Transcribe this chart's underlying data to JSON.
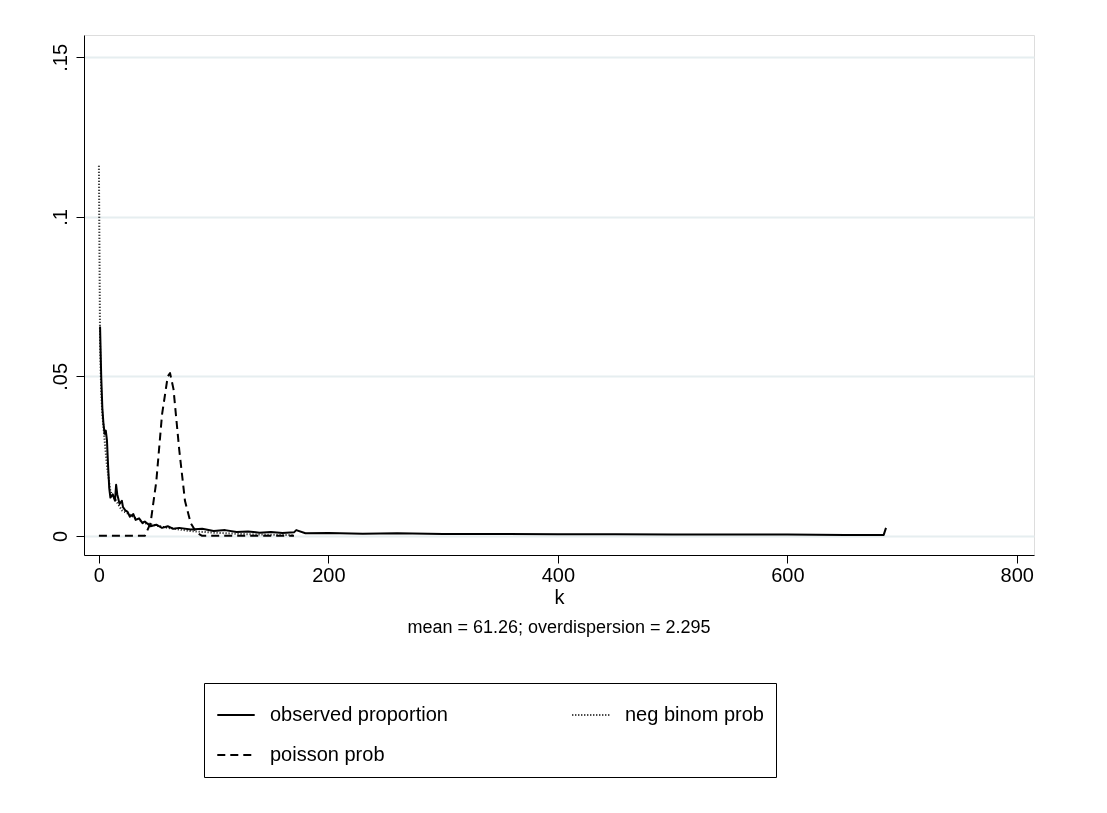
{
  "chart_data": {
    "type": "line",
    "xlabel": "k",
    "annotations": [
      "mean = 61.26; overdispersion = 2.295"
    ],
    "xlim": [
      -13,
      815
    ],
    "ylim": [
      -0.006,
      0.157
    ],
    "xticks": [
      0,
      200,
      400,
      600,
      800
    ],
    "yticks": [
      {
        "value": 0,
        "label": "0"
      },
      {
        "value": 0.05,
        "label": ".05"
      },
      {
        "value": 0.1,
        "label": ".1"
      },
      {
        "value": 0.15,
        "label": ".15"
      }
    ],
    "grid": "y",
    "legend": "bottom",
    "series": [
      {
        "name": "observed proportion",
        "color": "#000000",
        "line_style": "solid",
        "x": [
          1,
          2,
          3,
          4,
          5,
          6,
          7,
          8,
          9,
          10,
          12,
          14,
          15,
          16,
          18,
          20,
          21,
          23,
          25,
          27,
          30,
          32,
          35,
          38,
          40,
          45,
          50,
          55,
          60,
          65,
          70,
          80,
          90,
          100,
          110,
          120,
          130,
          140,
          150,
          160,
          170,
          172,
          180,
          200,
          230,
          260,
          300,
          350,
          400,
          450,
          500,
          550,
          600,
          650,
          680,
          684,
          686
        ],
        "values": [
          0.0656,
          0.05,
          0.04,
          0.035,
          0.032,
          0.033,
          0.03,
          0.022,
          0.015,
          0.012,
          0.013,
          0.011,
          0.016,
          0.013,
          0.01,
          0.011,
          0.009,
          0.008,
          0.0075,
          0.006,
          0.0068,
          0.005,
          0.0055,
          0.004,
          0.0045,
          0.003,
          0.0035,
          0.0025,
          0.003,
          0.0022,
          0.0025,
          0.002,
          0.0022,
          0.0015,
          0.0018,
          0.0012,
          0.0014,
          0.001,
          0.0012,
          0.0009,
          0.0011,
          0.0018,
          0.0008,
          0.0009,
          0.0007,
          0.0008,
          0.0006,
          0.0006,
          0.0005,
          0.0005,
          0.0004,
          0.0004,
          0.0004,
          0.0003,
          0.0003,
          0.0003,
          0.0025
        ]
      },
      {
        "name": "neg binom prob",
        "color": "#000000",
        "line_style": "dotted",
        "x": [
          0,
          1,
          2,
          3,
          5,
          7,
          10,
          15,
          20,
          30,
          40,
          60,
          80,
          100,
          130,
          170
        ],
        "values": [
          0.116,
          0.06,
          0.045,
          0.038,
          0.03,
          0.022,
          0.014,
          0.011,
          0.008,
          0.006,
          0.004,
          0.0025,
          0.0015,
          0.001,
          0.0005,
          0.0002
        ]
      },
      {
        "name": "poisson prob",
        "color": "#000000",
        "line_style": "dashed",
        "x": [
          0,
          40,
          45,
          50,
          55,
          60,
          62,
          65,
          70,
          75,
          80,
          85,
          90,
          170
        ],
        "values": [
          0,
          0,
          0.004,
          0.017,
          0.038,
          0.05,
          0.051,
          0.046,
          0.027,
          0.011,
          0.004,
          0.001,
          0,
          0
        ]
      }
    ]
  }
}
